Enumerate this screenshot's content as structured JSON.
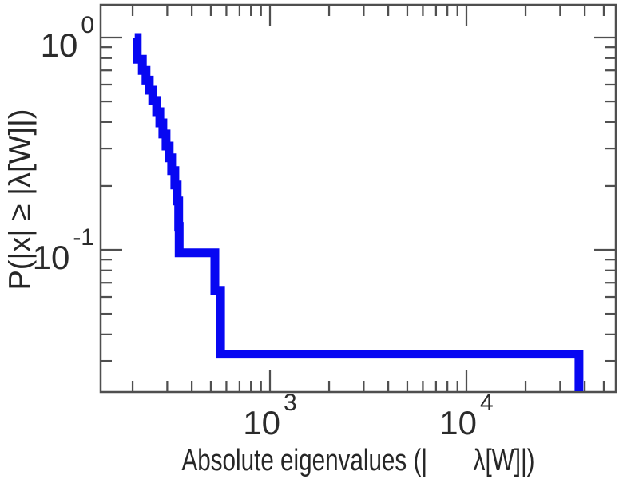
{
  "figure": {
    "background_color": "#ffffff",
    "frame_color": "#4f4f4f",
    "tick_color": "#4f4f4f",
    "text_color": "#262626",
    "tick_label_color": "#2b2b2b"
  },
  "chart_data": {
    "type": "line",
    "subtype": "empirical-ccdf-step",
    "title": "",
    "xlabel": "Absolute eigenvalues (|       λ[W]|)",
    "ylabel": "P(|x| ≥ |λ[W]|)",
    "x_scale": "log",
    "y_scale": "log",
    "xlim": [
      136,
      58100
    ],
    "ylim": [
      0.0214,
      1.44
    ],
    "grid": false,
    "legend": null,
    "x_ticks": {
      "major": [
        {
          "value": 1000,
          "base": "10",
          "exp": "3"
        },
        {
          "value": 10000,
          "base": "10",
          "exp": "4"
        }
      ],
      "minor_decades": [
        100,
        1000,
        10000
      ]
    },
    "y_ticks": {
      "major": [
        {
          "value": 1.0,
          "base": "10",
          "exp": "0"
        },
        {
          "value": 0.1,
          "base": "10",
          "exp": "-1"
        }
      ],
      "minor_decades": [
        0.01,
        0.1
      ]
    },
    "series": [
      {
        "name": "eigenvalue-ccdf",
        "color": "#0707f2",
        "line_width": 11,
        "points": [
          [
            205,
            1.0
          ],
          [
            211,
            1.0
          ],
          [
            211,
            0.79
          ],
          [
            224,
            0.79
          ],
          [
            224,
            0.7
          ],
          [
            234,
            0.7
          ],
          [
            234,
            0.63
          ],
          [
            243,
            0.63
          ],
          [
            243,
            0.565
          ],
          [
            253,
            0.565
          ],
          [
            253,
            0.505
          ],
          [
            265,
            0.505
          ],
          [
            265,
            0.447
          ],
          [
            275,
            0.447
          ],
          [
            275,
            0.396
          ],
          [
            285,
            0.396
          ],
          [
            285,
            0.351
          ],
          [
            296,
            0.351
          ],
          [
            296,
            0.308
          ],
          [
            307,
            0.308
          ],
          [
            307,
            0.271
          ],
          [
            316,
            0.271
          ],
          [
            316,
            0.236
          ],
          [
            328,
            0.236
          ],
          [
            328,
            0.202
          ],
          [
            337,
            0.202
          ],
          [
            337,
            0.17
          ],
          [
            343,
            0.17
          ],
          [
            343,
            0.129
          ],
          [
            345,
            0.129
          ],
          [
            345,
            0.0968
          ],
          [
            524,
            0.0968
          ],
          [
            524,
            0.0645
          ],
          [
            560,
            0.0645
          ],
          [
            560,
            0.0323
          ],
          [
            37400,
            0.0323
          ],
          [
            37400,
            0.02
          ]
        ]
      }
    ]
  }
}
